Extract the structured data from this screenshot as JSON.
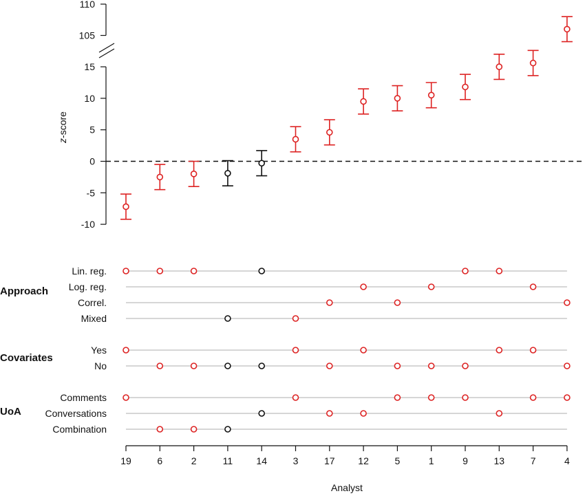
{
  "chart_data": {
    "type": "scatter",
    "ylabel_italic": "z",
    "ylabel_rest": "-score",
    "xlabel": "Analyst",
    "categories": [
      "19",
      "6",
      "2",
      "11",
      "14",
      "3",
      "17",
      "12",
      "5",
      "1",
      "9",
      "13",
      "7",
      "4"
    ],
    "lower_ticks": [
      "-10",
      "-5",
      "0",
      "5",
      "10",
      "15"
    ],
    "upper_ticks": [
      "105",
      "110"
    ],
    "ylim_lower": [
      -10,
      15
    ],
    "ylim_upper": [
      105,
      110
    ],
    "reference_line": 0,
    "points": [
      {
        "analyst": "19",
        "z": -7.2,
        "lo": -9.2,
        "hi": -5.2,
        "significant": true
      },
      {
        "analyst": "6",
        "z": -2.5,
        "lo": -4.5,
        "hi": -0.5,
        "significant": true
      },
      {
        "analyst": "2",
        "z": -2.0,
        "lo": -4.0,
        "hi": 0.0,
        "significant": true
      },
      {
        "analyst": "11",
        "z": -1.9,
        "lo": -3.9,
        "hi": 0.1,
        "significant": false
      },
      {
        "analyst": "14",
        "z": -0.3,
        "lo": -2.3,
        "hi": 1.7,
        "significant": false
      },
      {
        "analyst": "3",
        "z": 3.5,
        "lo": 1.5,
        "hi": 5.5,
        "significant": true
      },
      {
        "analyst": "17",
        "z": 4.6,
        "lo": 2.6,
        "hi": 6.6,
        "significant": true
      },
      {
        "analyst": "12",
        "z": 9.5,
        "lo": 7.5,
        "hi": 11.5,
        "significant": true
      },
      {
        "analyst": "5",
        "z": 10.0,
        "lo": 8.0,
        "hi": 12.0,
        "significant": true
      },
      {
        "analyst": "1",
        "z": 10.5,
        "lo": 8.5,
        "hi": 12.5,
        "significant": true
      },
      {
        "analyst": "9",
        "z": 11.8,
        "lo": 9.8,
        "hi": 13.8,
        "significant": true
      },
      {
        "analyst": "13",
        "z": 15.0,
        "lo": 13.0,
        "hi": 17.0,
        "significant": true
      },
      {
        "analyst": "7",
        "z": 15.6,
        "lo": 13.6,
        "hi": 17.6,
        "significant": true
      },
      {
        "analyst": "4",
        "z": 106.0,
        "lo": 104.0,
        "hi": 108.0,
        "significant": true
      }
    ],
    "groups": [
      {
        "name": "Approach",
        "rows": [
          {
            "label": "Lin. reg.",
            "analysts": [
              "19",
              "6",
              "2",
              "14",
              "9",
              "13"
            ]
          },
          {
            "label": "Log. reg.",
            "analysts": [
              "12",
              "1",
              "7"
            ]
          },
          {
            "label": "Correl.",
            "analysts": [
              "17",
              "5",
              "4"
            ]
          },
          {
            "label": "Mixed",
            "analysts": [
              "11",
              "3"
            ]
          }
        ]
      },
      {
        "name": "Covariates",
        "rows": [
          {
            "label": "Yes",
            "analysts": [
              "19",
              "3",
              "12",
              "13",
              "7"
            ]
          },
          {
            "label": "No",
            "analysts": [
              "6",
              "2",
              "11",
              "14",
              "17",
              "5",
              "1",
              "9",
              "4"
            ]
          }
        ]
      },
      {
        "name": "UoA",
        "rows": [
          {
            "label": "Comments",
            "analysts": [
              "19",
              "3",
              "5",
              "1",
              "9",
              "7",
              "4"
            ]
          },
          {
            "label": "Conversations",
            "analysts": [
              "14",
              "17",
              "12",
              "13"
            ]
          },
          {
            "label": "Combination",
            "analysts": [
              "6",
              "2",
              "11"
            ]
          }
        ]
      }
    ],
    "colors": {
      "significant": "#dd2222",
      "nonsignificant": "#111111",
      "row_line": "#c8c8c8"
    }
  }
}
